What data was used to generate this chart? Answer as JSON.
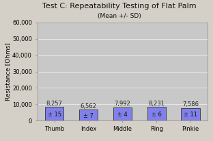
{
  "title": "Test C: Repeatability Testing of Flat Palm",
  "subtitle": "(Mean +/- SD)",
  "categories": [
    "Thumb",
    "Index",
    "Middle",
    "Ring",
    "Pinkie"
  ],
  "means": [
    8257,
    6562,
    7992,
    8231,
    7586
  ],
  "sds": [
    15,
    7,
    4,
    6,
    11
  ],
  "mean_labels": [
    "8,257",
    "6,562",
    "7,992",
    "8,231",
    "7,586"
  ],
  "sd_labels": [
    "± 15",
    "± 7",
    "± 4",
    "± 6",
    "± 11"
  ],
  "bar_color": "#8080e8",
  "bar_edge_color": "#333333",
  "ylabel": "Resistance [Ohms]",
  "ylim": [
    0,
    60000
  ],
  "yticks": [
    0,
    10000,
    20000,
    30000,
    40000,
    50000,
    60000
  ],
  "ytick_labels": [
    "0",
    "10,000",
    "20,000",
    "30,000",
    "40,000",
    "50,000",
    "60,000"
  ],
  "background_color": "#d4d0c8",
  "plot_bg_color": "#c8c8c8",
  "grid_color": "#e8e8e8",
  "title_fontsize": 8,
  "subtitle_fontsize": 6.5,
  "axis_label_fontsize": 6.5,
  "tick_fontsize": 6,
  "annotation_fontsize": 6,
  "bar_width": 0.55
}
